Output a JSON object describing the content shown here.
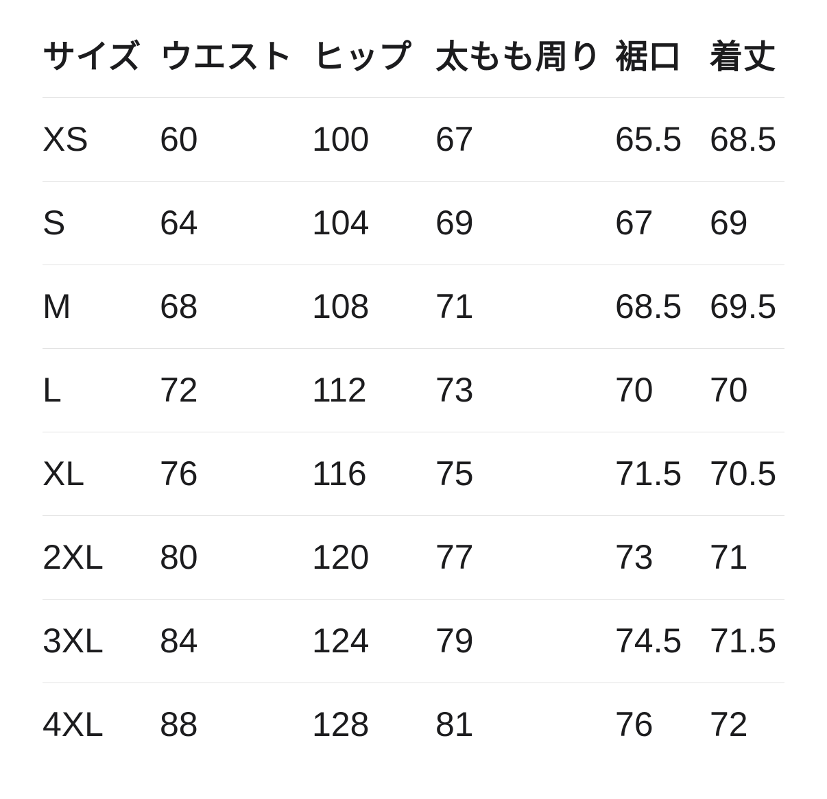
{
  "colors": {
    "background": "#ffffff",
    "text": "#1c1c1e",
    "divider": "#e3e3e3"
  },
  "chart_data": {
    "type": "table",
    "columns": [
      {
        "key": "size",
        "label": "サイズ"
      },
      {
        "key": "waist",
        "label": "ウエスト"
      },
      {
        "key": "hip",
        "label": "ヒップ"
      },
      {
        "key": "thigh",
        "label": "太もも周り"
      },
      {
        "key": "hem",
        "label": "裾口"
      },
      {
        "key": "length",
        "label": "着丈"
      }
    ],
    "rows": [
      [
        "XS",
        "60",
        "100",
        "67",
        "65.5",
        "68.5"
      ],
      [
        "S",
        "64",
        "104",
        "69",
        "67",
        "69"
      ],
      [
        "M",
        "68",
        "108",
        "71",
        "68.5",
        "69.5"
      ],
      [
        "L",
        "72",
        "112",
        "73",
        "70",
        "70"
      ],
      [
        "XL",
        "76",
        "116",
        "75",
        "71.5",
        "70.5"
      ],
      [
        "2XL",
        "80",
        "120",
        "77",
        "73",
        "71"
      ],
      [
        "3XL",
        "84",
        "124",
        "79",
        "74.5",
        "71.5"
      ],
      [
        "4XL",
        "88",
        "128",
        "81",
        "76",
        "72"
      ]
    ]
  }
}
